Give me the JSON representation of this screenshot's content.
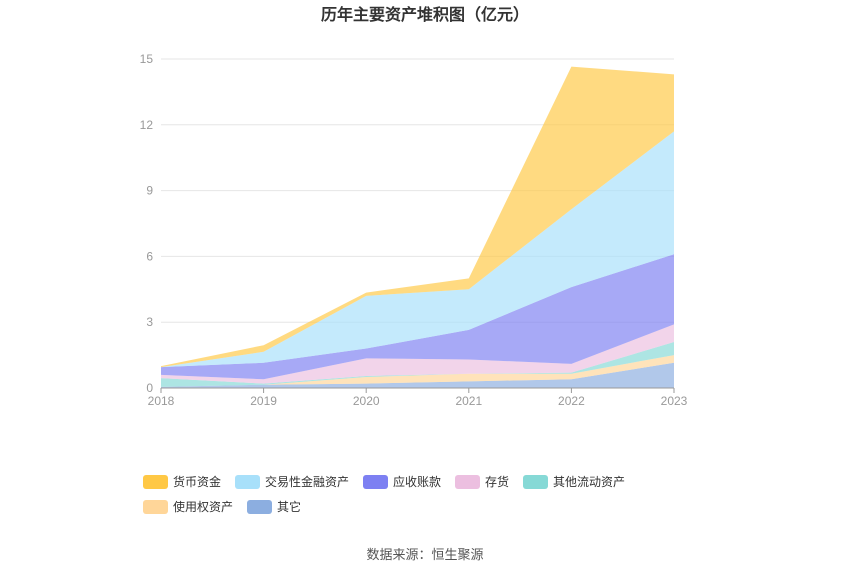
{
  "chart_data": {
    "type": "area",
    "stacked": true,
    "title": "历年主要资产堆积图（亿元）",
    "categories": [
      "2018",
      "2019",
      "2020",
      "2021",
      "2022",
      "2023"
    ],
    "ylim": [
      0,
      15
    ],
    "yticks": [
      "0",
      "3",
      "6",
      "9",
      "12",
      "15"
    ],
    "grid": true,
    "legend_position": "bottom",
    "series": [
      {
        "name": "其它",
        "color": "#8caee0",
        "values": [
          0.05,
          0.15,
          0.2,
          0.3,
          0.4,
          1.15
        ]
      },
      {
        "name": "使用权资产",
        "color": "#ffd699",
        "values": [
          0.0,
          0.0,
          0.3,
          0.35,
          0.25,
          0.35
        ]
      },
      {
        "name": "其他流动资产",
        "color": "#86d9d6",
        "values": [
          0.4,
          0.05,
          0.05,
          0.0,
          0.05,
          0.6
        ]
      },
      {
        "name": "存货",
        "color": "#ecbfe0",
        "values": [
          0.15,
          0.2,
          0.8,
          0.65,
          0.4,
          0.8
        ]
      },
      {
        "name": "应收账款",
        "color": "#7d80f2",
        "values": [
          0.35,
          0.75,
          0.45,
          1.35,
          3.5,
          3.2
        ]
      },
      {
        "name": "交易性金融资产",
        "color": "#a8e0fa",
        "values": [
          0.0,
          0.5,
          2.4,
          1.85,
          3.55,
          5.6
        ]
      },
      {
        "name": "货币资金",
        "color": "#ffc845",
        "values": [
          0.05,
          0.3,
          0.15,
          0.5,
          6.5,
          2.6
        ]
      }
    ],
    "source": "数据来源：恒生聚源"
  }
}
